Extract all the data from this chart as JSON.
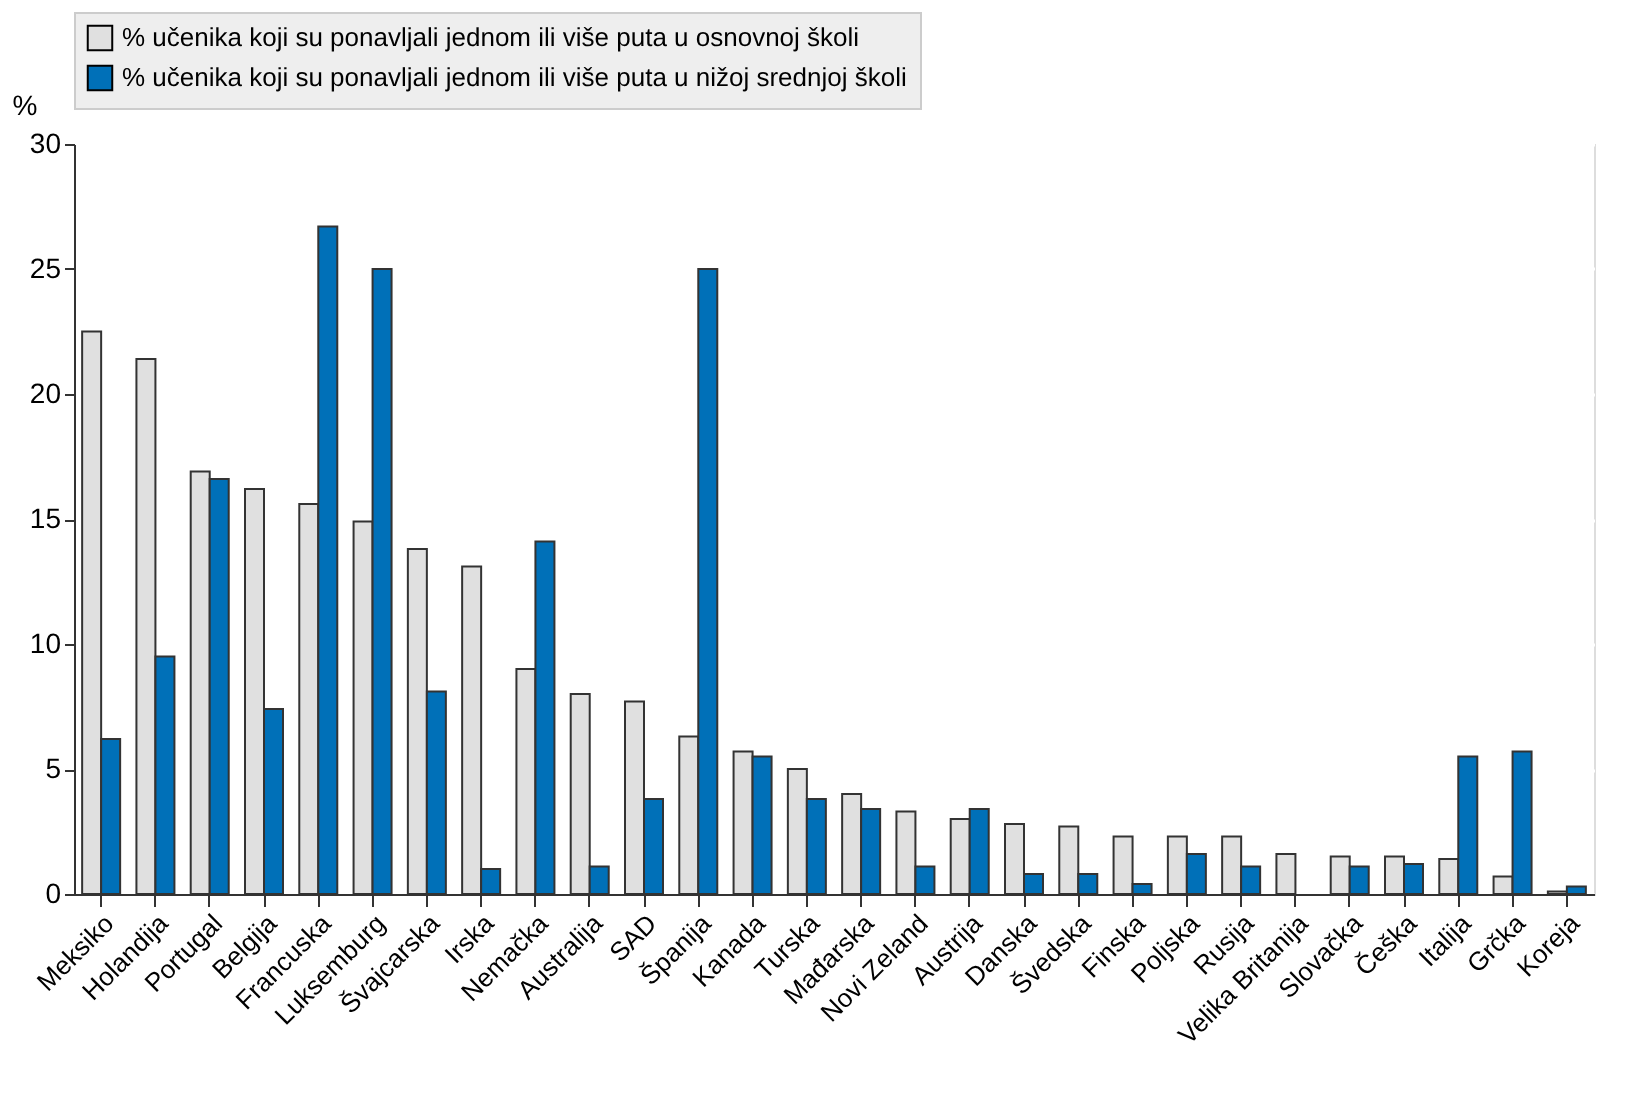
{
  "chart_data": {
    "type": "bar",
    "ylabel": "%",
    "categories": [
      "Meksiko",
      "Holandija",
      "Portugal",
      "Belgija",
      "Francuska",
      "Luksemburg",
      "Švajcarska",
      "Irska",
      "Nemačka",
      "Australija",
      "SAD",
      "Španija",
      "Kanada",
      "Turska",
      "Mađarska",
      "Novi Zeland",
      "Austrija",
      "Danska",
      "Švedska",
      "Finska",
      "Poljska",
      "Rusija",
      "Velika Britanija",
      "Slovačka",
      "Češka",
      "Italija",
      "Grčka",
      "Koreja"
    ],
    "series": [
      {
        "name": "% učenika koji su ponavljali jednom ili više puta u osnovnoj školi",
        "color": "#e0e0e0",
        "values": [
          22.5,
          21.4,
          16.9,
          16.2,
          15.6,
          14.9,
          13.8,
          13.1,
          9.0,
          8.0,
          7.7,
          6.3,
          5.7,
          5.0,
          4.0,
          3.3,
          3.0,
          2.8,
          2.7,
          2.3,
          2.3,
          2.3,
          1.6,
          1.5,
          1.5,
          1.4,
          0.7,
          0.1
        ]
      },
      {
        "name": "% učenika koji su ponavljali jednom ili više puta u nižoj srednjoj školi",
        "color": "#0070b8",
        "values": [
          6.2,
          9.5,
          16.6,
          7.4,
          26.7,
          25.0,
          8.1,
          1.0,
          14.1,
          1.1,
          3.8,
          25.0,
          5.5,
          3.8,
          3.4,
          1.1,
          3.4,
          0.8,
          0.8,
          0.4,
          1.6,
          1.1,
          null,
          1.1,
          1.2,
          5.5,
          5.7,
          0.3
        ]
      }
    ],
    "ylim": [
      0,
      30
    ],
    "yticks": [
      0,
      5,
      10,
      15,
      20,
      25,
      30
    ],
    "grid": true,
    "legend": "top"
  }
}
